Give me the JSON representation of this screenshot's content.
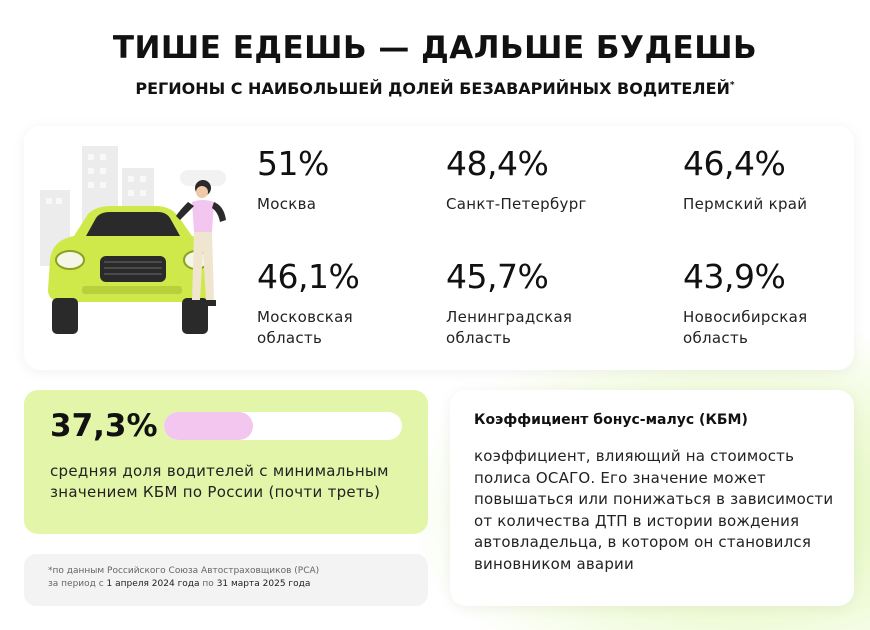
{
  "header": {
    "title": "ТИШЕ ЕДЕШЬ — ДАЛЬШЕ БУДЕШЬ",
    "subtitle": "РЕГИОНЫ С НАИБОЛЬШЕЙ ДОЛЕЙ БЕЗАВАРИЙНЫХ ВОДИТЕЛЕЙ",
    "subtitle_mark": "*"
  },
  "regions": [
    {
      "value": "51%",
      "name": "Москва"
    },
    {
      "value": "48,4%",
      "name": "Санкт-Петербург"
    },
    {
      "value": "46,4%",
      "name": "Пермский край"
    },
    {
      "value": "46,1%",
      "name": "Московская область"
    },
    {
      "value": "45,7%",
      "name": "Ленинградская область"
    },
    {
      "value": "43,9%",
      "name": "Новосибирская область"
    }
  ],
  "summary": {
    "value": "37,3%",
    "share": 0.373,
    "text": "средняя доля водителей с минимальным значением КБМ по России (почти треть)"
  },
  "footnote": {
    "line1": "*по данным Российского Союза Автостраховщиков (РСА)",
    "line2_pre": "за период с ",
    "date_from": "1 апреля 2024 года",
    "line2_mid": " по ",
    "date_to": "31 марта 2025 года"
  },
  "kbm": {
    "title": "Коэффициент бонус-малус (КБМ)",
    "text": "коэффициент, влияющий на стоимость полиса ОСАГО. Его значение может повышаться или понижаться в зависимости от количества ДТП в истории вождения автовладельца, в котором он становился виновником аварии"
  },
  "colors": {
    "accent_green": "#e3f5a8",
    "car_lime": "#cfe84a",
    "bar_pink": "#f3c6f0"
  }
}
